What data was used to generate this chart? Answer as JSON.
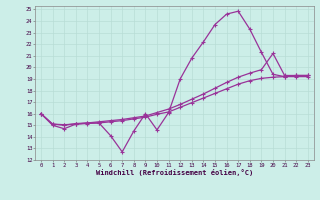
{
  "xlabel": "Windchill (Refroidissement éolien,°C)",
  "bg_color": "#cceee8",
  "grid_color": "#aaddcc",
  "line_color": "#993399",
  "xlim": [
    -0.5,
    23.5
  ],
  "ylim": [
    12,
    25.3
  ],
  "yticks": [
    12,
    13,
    14,
    15,
    16,
    17,
    18,
    19,
    20,
    21,
    22,
    23,
    24,
    25
  ],
  "xticks": [
    0,
    1,
    2,
    3,
    4,
    5,
    6,
    7,
    8,
    9,
    10,
    11,
    12,
    13,
    14,
    15,
    16,
    17,
    18,
    19,
    20,
    21,
    22,
    23
  ],
  "series": [
    {
      "x": [
        0,
        1,
        2,
        3,
        4,
        5,
        6,
        7,
        8,
        9,
        10,
        11,
        12,
        13,
        14,
        15,
        16,
        17,
        18,
        19,
        20,
        21,
        22,
        23
      ],
      "y": [
        16.0,
        15.0,
        14.7,
        15.1,
        15.2,
        15.2,
        14.1,
        12.7,
        14.5,
        16.0,
        14.6,
        16.1,
        19.0,
        20.8,
        22.2,
        23.7,
        24.6,
        24.85,
        23.3,
        21.3,
        19.4,
        19.2,
        19.3,
        19.3
      ]
    },
    {
      "x": [
        0,
        1,
        2,
        3,
        4,
        5,
        6,
        7,
        8,
        9,
        10,
        11,
        12,
        13,
        14,
        15,
        16,
        17,
        18,
        19,
        20,
        21,
        22,
        23
      ],
      "y": [
        16.0,
        15.1,
        15.0,
        15.15,
        15.2,
        15.3,
        15.4,
        15.5,
        15.65,
        15.8,
        16.1,
        16.4,
        16.8,
        17.25,
        17.7,
        18.2,
        18.7,
        19.15,
        19.5,
        19.8,
        21.2,
        19.3,
        19.3,
        19.3
      ]
    },
    {
      "x": [
        0,
        1,
        2,
        3,
        4,
        5,
        6,
        7,
        8,
        9,
        10,
        11,
        12,
        13,
        14,
        15,
        16,
        17,
        18,
        19,
        20,
        21,
        22,
        23
      ],
      "y": [
        16.0,
        15.1,
        15.05,
        15.1,
        15.15,
        15.2,
        15.3,
        15.4,
        15.55,
        15.7,
        15.95,
        16.15,
        16.55,
        16.95,
        17.35,
        17.75,
        18.15,
        18.55,
        18.85,
        19.05,
        19.15,
        19.2,
        19.2,
        19.2
      ]
    }
  ]
}
